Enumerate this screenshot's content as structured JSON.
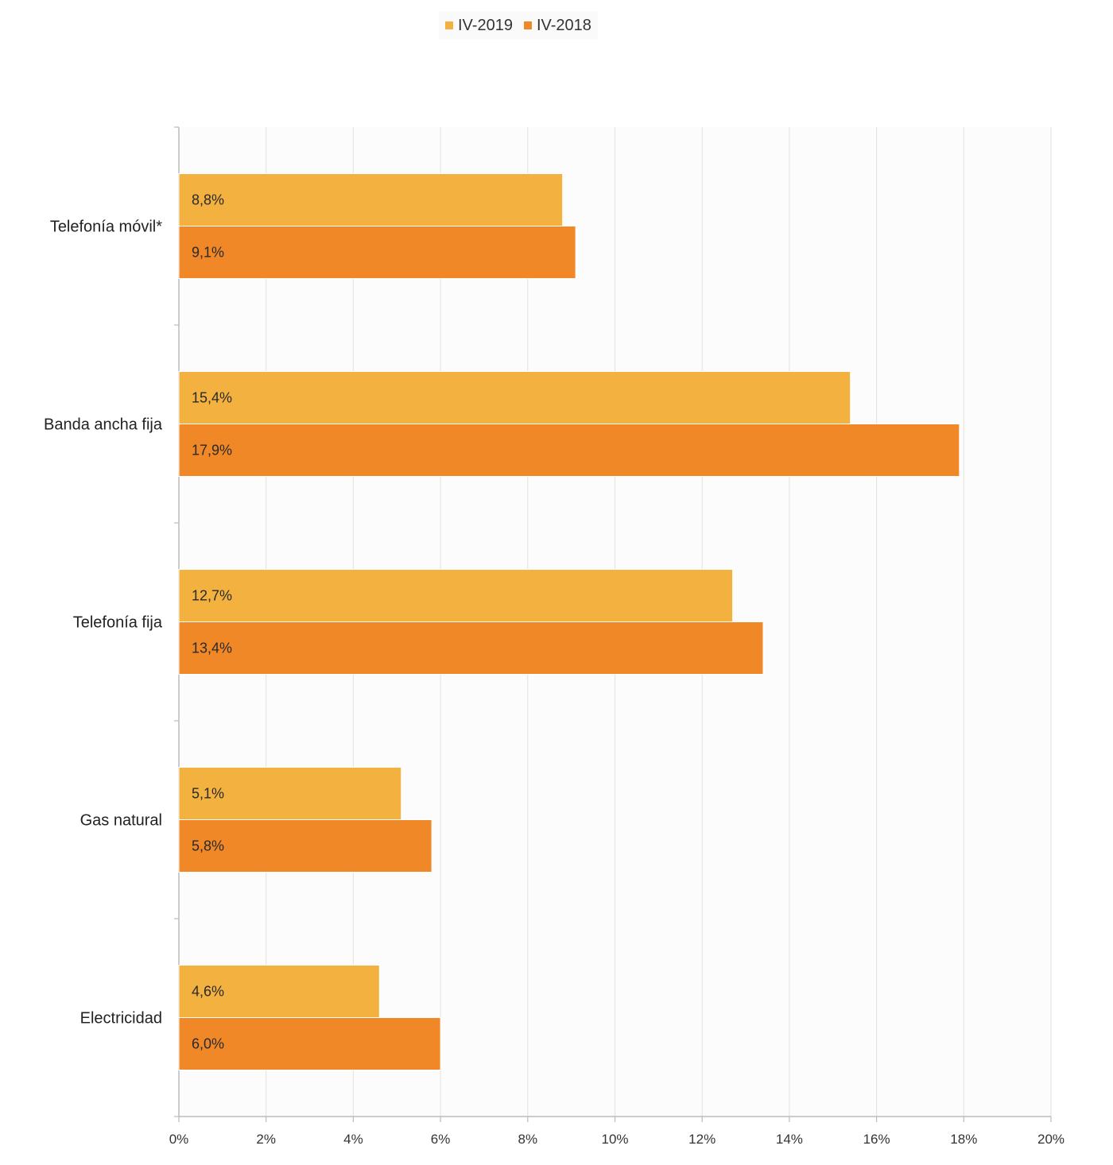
{
  "chart_data": {
    "type": "bar",
    "orientation": "horizontal",
    "categories": [
      "Telefonía móvil*",
      "Banda ancha fija",
      "Telefonía fija",
      "Gas natural",
      "Electricidad"
    ],
    "series": [
      {
        "name": "IV-2019",
        "color": "#F3B23F",
        "values": [
          8.8,
          15.4,
          12.7,
          5.1,
          4.6
        ],
        "labels": [
          "8,8%",
          "15,4%",
          "12,7%",
          "5,1%",
          "4,6%"
        ]
      },
      {
        "name": "IV-2018",
        "color": "#F18827",
        "values": [
          9.1,
          17.9,
          13.4,
          5.8,
          6.0
        ],
        "labels": [
          "9,1%",
          "17,9%",
          "13,4%",
          "5,8%",
          "6,0%"
        ]
      }
    ],
    "xlim": [
      0,
      20
    ],
    "xticks": [
      0,
      2,
      4,
      6,
      8,
      10,
      12,
      14,
      16,
      18,
      20
    ],
    "xtick_labels": [
      "0%",
      "2%",
      "4%",
      "6%",
      "8%",
      "10%",
      "12%",
      "14%",
      "16%",
      "18%",
      "20%"
    ],
    "grid": "vertical",
    "legend_position": "top-center"
  }
}
